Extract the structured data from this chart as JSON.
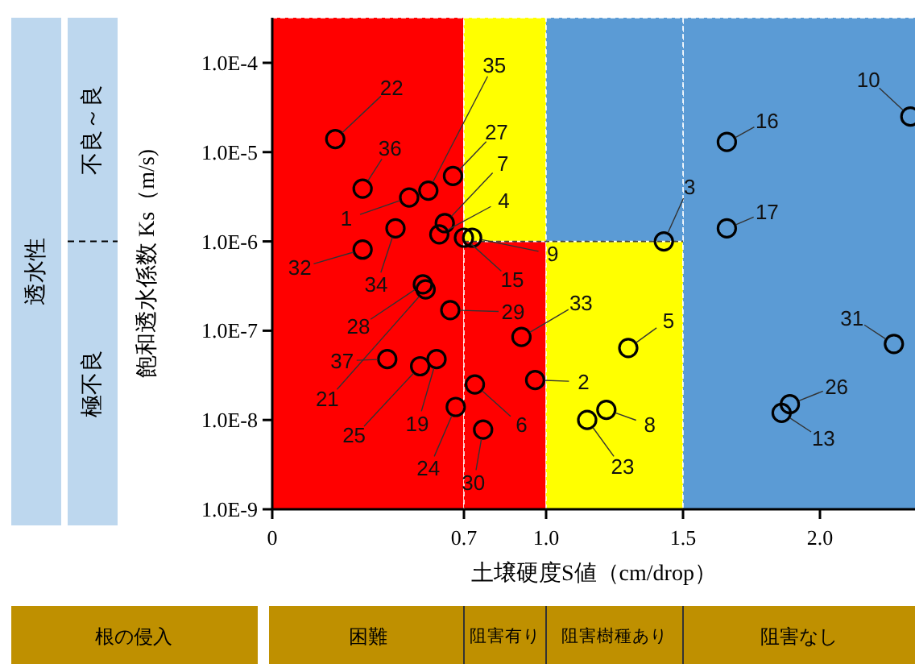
{
  "chart_data": {
    "type": "scatter",
    "xlabel": "土壌硬度S値（cm/drop）",
    "ylabel": "飽和透水係数 Ks（m/s)",
    "log": "y",
    "xlim": [
      0,
      2.35
    ],
    "ylim": [
      1e-09,
      0.00032
    ],
    "xticks": [
      0,
      0.7,
      {
        "value": 1.0,
        "label": "1.0"
      },
      1.5,
      {
        "value": 2.0,
        "label": "2.0"
      }
    ],
    "yticks": [
      {
        "value": 1e-09,
        "label": "1.0E-9"
      },
      {
        "value": 1e-08,
        "label": "1.0E-8"
      },
      {
        "value": 1e-07,
        "label": "1.0E-7"
      },
      {
        "value": 1e-06,
        "label": "1.0E-6"
      },
      {
        "value": 1e-05,
        "label": "1.0E-5"
      },
      {
        "value": 0.0001,
        "label": "1.0E-4"
      }
    ],
    "grid": false,
    "marker": "circle",
    "bands": [
      {
        "axis": "x",
        "from": 0,
        "to": 0.7,
        "color": "#ff0000"
      },
      {
        "axis": "x",
        "from": 0.7,
        "to": 1.0,
        "color": "#ff0000"
      },
      {
        "axis": "x",
        "from": 1.0,
        "to": 1.5,
        "color": "#ffff00"
      },
      {
        "axis": "x",
        "from": 1.5,
        "to": 2.35,
        "color": "#5b9bd5"
      }
    ],
    "ref_lines": [
      {
        "axis": "y",
        "value": 1e-06,
        "line_style": "dashed"
      }
    ],
    "series": [
      {
        "color": "#000000",
        "x": [
          0.5,
          0.96,
          1.43,
          0.61,
          1.3,
          0.74,
          0.63,
          1.22,
          0.73,
          2.33,
          1.86,
          0.7,
          1.66,
          1.66,
          0.6,
          0.56,
          0.23,
          1.15,
          0.67,
          0.54,
          1.89,
          0.66,
          0.55,
          0.65,
          0.77,
          2.27,
          0.33,
          0.91,
          0.45,
          0.57,
          0.33,
          0.42
        ],
        "values": [
          3.1e-06,
          2.8e-08,
          1e-06,
          1.2e-06,
          6.4e-08,
          2.5e-08,
          1.6e-06,
          1.3e-08,
          1.1e-06,
          2.5e-05,
          1.2e-08,
          1.1e-06,
          1.3e-05,
          1.4e-06,
          4.8e-08,
          2.9e-07,
          1.4e-05,
          1e-08,
          1.4e-08,
          4e-08,
          1.5e-08,
          5.4e-06,
          3.3e-07,
          1.7e-07,
          7.8e-09,
          7.1e-08,
          8.1e-07,
          8.5e-08,
          1.4e-06,
          3.7e-06,
          3.9e-06,
          4.8e-08
        ]
      }
    ],
    "annotations": [
      "透水性",
      "不良～良",
      "極不良",
      "根の侵入",
      "困難",
      "阻害有り",
      "阻害樹種あり",
      "阻害なし",
      {
        "text": "1",
        "x": 0.5,
        "y": 3.1e-06
      },
      {
        "text": "2",
        "x": 0.96,
        "y": 2.8e-08
      },
      {
        "text": "3",
        "x": 1.43,
        "y": 1e-06
      },
      {
        "text": "4",
        "x": 0.61,
        "y": 1.2e-06
      },
      {
        "text": "5",
        "x": 1.3,
        "y": 6.4e-08
      },
      {
        "text": "6",
        "x": 0.74,
        "y": 2.5e-08
      },
      {
        "text": "7",
        "x": 0.63,
        "y": 1.6e-06
      },
      {
        "text": "8",
        "x": 1.22,
        "y": 1.3e-08
      },
      {
        "text": "9",
        "x": 0.73,
        "y": 1.1e-06
      },
      {
        "text": "10",
        "x": 2.33,
        "y": 2.5e-05
      },
      {
        "text": "13",
        "x": 1.86,
        "y": 1.2e-08
      },
      {
        "text": "15",
        "x": 0.7,
        "y": 1.1e-06
      },
      {
        "text": "16",
        "x": 1.66,
        "y": 1.3e-05
      },
      {
        "text": "17",
        "x": 1.66,
        "y": 1.4e-06
      },
      {
        "text": "19",
        "x": 0.6,
        "y": 4.8e-08
      },
      {
        "text": "21",
        "x": 0.56,
        "y": 2.9e-07
      },
      {
        "text": "22",
        "x": 0.23,
        "y": 1.4e-05
      },
      {
        "text": "23",
        "x": 1.15,
        "y": 1e-08
      },
      {
        "text": "24",
        "x": 0.67,
        "y": 1.4e-08
      },
      {
        "text": "25",
        "x": 0.54,
        "y": 4e-08
      },
      {
        "text": "26",
        "x": 1.89,
        "y": 1.5e-08
      },
      {
        "text": "27",
        "x": 0.66,
        "y": 5.4e-06
      },
      {
        "text": "28",
        "x": 0.55,
        "y": 3.3e-07
      },
      {
        "text": "29",
        "x": 0.65,
        "y": 1.7e-07
      },
      {
        "text": "30",
        "x": 0.77,
        "y": 7.8e-09
      },
      {
        "text": "31",
        "x": 2.27,
        "y": 7.1e-08
      },
      {
        "text": "32",
        "x": 0.33,
        "y": 8.1e-07
      },
      {
        "text": "33",
        "x": 0.91,
        "y": 8.5e-08
      },
      {
        "text": "34",
        "x": 0.45,
        "y": 1.4e-06
      },
      {
        "text": "35",
        "x": 0.57,
        "y": 3.7e-06
      },
      {
        "text": "36",
        "x": 0.33,
        "y": 3.9e-06
      },
      {
        "text": "37",
        "x": 0.42,
        "y": 4.8e-08
      }
    ]
  }
}
